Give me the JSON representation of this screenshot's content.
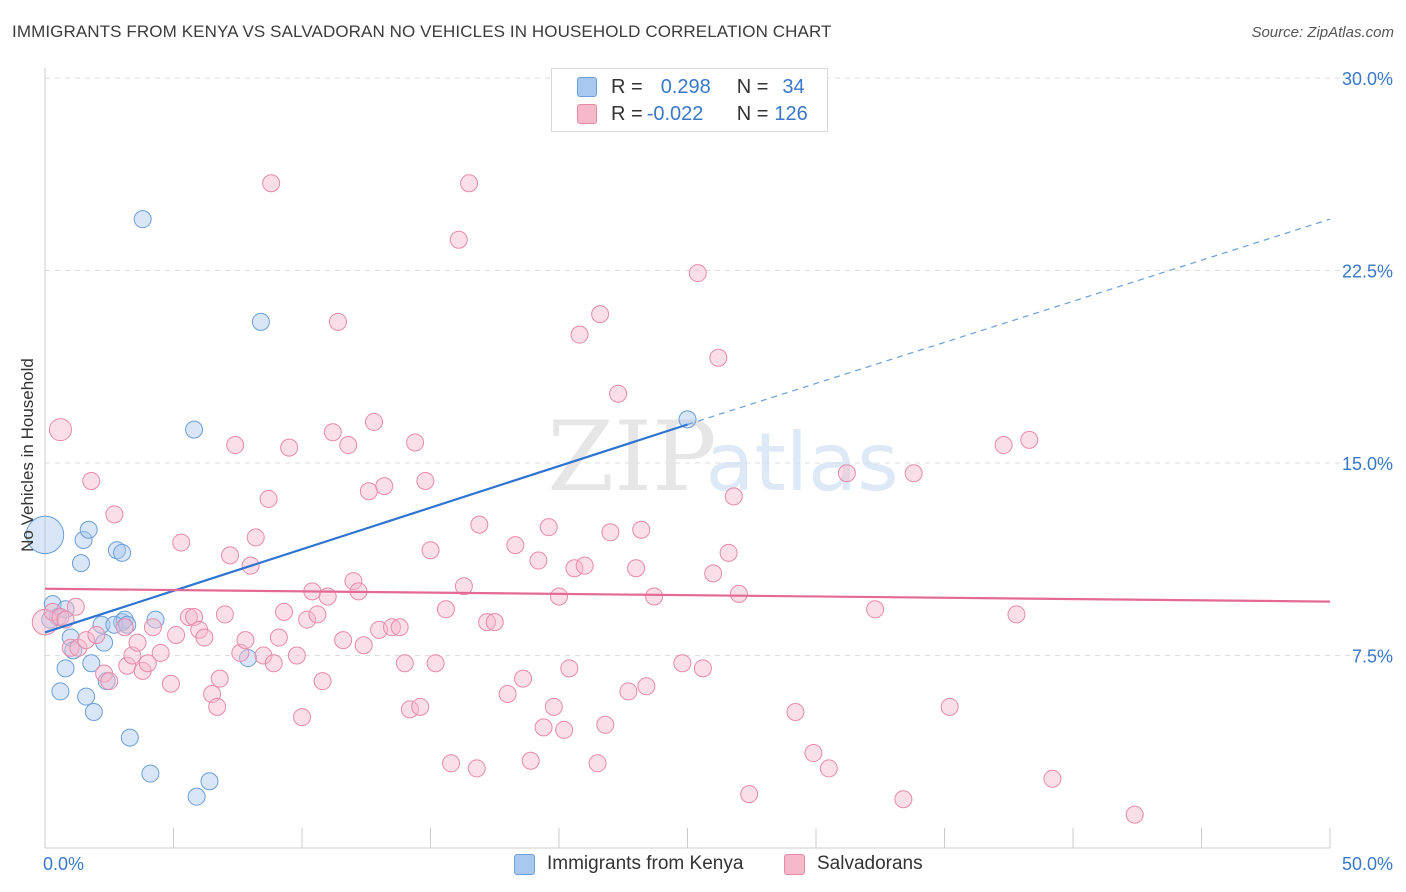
{
  "title": "IMMIGRANTS FROM KENYA VS SALVADORAN NO VEHICLES IN HOUSEHOLD CORRELATION CHART",
  "source": "Source: ZipAtlas.com",
  "watermark": {
    "zip": "ZIP",
    "atlas": "atlas"
  },
  "legend": {
    "rows": [
      {
        "r_label": "R =",
        "r_value": "0.298",
        "n_label": "N =",
        "n_value": "34",
        "color": "#a9c8ef",
        "edge": "#6a9fd8"
      },
      {
        "r_label": "R =",
        "r_value": "-0.022",
        "n_label": "N =",
        "n_value": "126",
        "color": "#f6b8cb",
        "edge": "#e88aa8"
      }
    ]
  },
  "bottom_legend": [
    {
      "label": "Immigrants from Kenya",
      "color": "#a9c8ef",
      "edge": "#6a9fd8"
    },
    {
      "label": "Salvadorans",
      "color": "#f6b8cb",
      "edge": "#e88aa8"
    }
  ],
  "chart_data": {
    "type": "scatter",
    "ylabel": "No Vehicles in Household",
    "xlim": [
      0,
      50
    ],
    "ylim": [
      0,
      30
    ],
    "x_tick_labels": [
      {
        "value": 0,
        "label": "0.0%"
      },
      {
        "value": 50,
        "label": "50.0%"
      }
    ],
    "y_tick_labels": [
      {
        "value": 7.5,
        "label": "7.5%"
      },
      {
        "value": 15,
        "label": "15.0%"
      },
      {
        "value": 22.5,
        "label": "22.5%"
      },
      {
        "value": 30,
        "label": "30.0%"
      }
    ],
    "grid": "horizontal dashed",
    "series": [
      {
        "name": "Immigrants from Kenya",
        "color": "#6a9fd8",
        "fill": "#a9c8ef",
        "trend": {
          "x": [
            0,
            25
          ],
          "y": [
            8.4,
            16.5
          ],
          "extended_to": [
            50,
            24.5
          ]
        },
        "points": [
          [
            0.0,
            12.2,
            2.2
          ],
          [
            0.3,
            9.5,
            1
          ],
          [
            0.5,
            9.0,
            1
          ],
          [
            0.8,
            9.3,
            1
          ],
          [
            0.6,
            6.1,
            1
          ],
          [
            0.8,
            7.0,
            1
          ],
          [
            1.0,
            8.2,
            1
          ],
          [
            1.1,
            7.7,
            1
          ],
          [
            1.4,
            11.1,
            1
          ],
          [
            1.5,
            12.0,
            1
          ],
          [
            1.6,
            5.9,
            1
          ],
          [
            1.7,
            12.4,
            1
          ],
          [
            1.8,
            7.2,
            1
          ],
          [
            1.9,
            5.3,
            1
          ],
          [
            2.3,
            8.0,
            1
          ],
          [
            2.2,
            8.7,
            1
          ],
          [
            2.4,
            6.5,
            1
          ],
          [
            2.8,
            11.6,
            1
          ],
          [
            3.0,
            11.5,
            1
          ],
          [
            3.0,
            8.8,
            1
          ],
          [
            3.1,
            8.9,
            1
          ],
          [
            3.3,
            4.3,
            1
          ],
          [
            3.8,
            24.5,
            1
          ],
          [
            4.1,
            2.9,
            1
          ],
          [
            4.3,
            8.9,
            1
          ],
          [
            5.8,
            16.3,
            1
          ],
          [
            5.9,
            2.0,
            1
          ],
          [
            6.4,
            2.6,
            1
          ],
          [
            7.9,
            7.4,
            1
          ],
          [
            8.4,
            20.5,
            1
          ],
          [
            25.0,
            16.7,
            1
          ],
          [
            0.2,
            8.9,
            1
          ],
          [
            2.7,
            8.7,
            1
          ],
          [
            3.2,
            8.7,
            1
          ]
        ]
      },
      {
        "name": "Salvadorans",
        "color": "#e88aa8",
        "fill": "#f6b8cb",
        "trend": {
          "x": [
            0,
            50
          ],
          "y": [
            10.1,
            9.6
          ]
        },
        "points": [
          [
            0.0,
            8.8,
            1.5
          ],
          [
            0.3,
            9.2,
            1
          ],
          [
            0.6,
            9.0,
            1
          ],
          [
            0.8,
            8.9,
            1
          ],
          [
            1.0,
            7.8,
            1
          ],
          [
            1.2,
            9.4,
            1
          ],
          [
            1.3,
            7.8,
            1
          ],
          [
            0.6,
            16.3,
            1.3
          ],
          [
            1.8,
            14.3,
            1
          ],
          [
            1.6,
            8.1,
            1
          ],
          [
            2.0,
            8.3,
            1
          ],
          [
            2.3,
            6.8,
            1
          ],
          [
            2.5,
            6.5,
            1
          ],
          [
            2.7,
            13.0,
            1
          ],
          [
            3.1,
            8.6,
            1
          ],
          [
            3.2,
            7.1,
            1
          ],
          [
            3.4,
            7.5,
            1
          ],
          [
            3.6,
            8.0,
            1
          ],
          [
            3.8,
            6.9,
            1
          ],
          [
            4.0,
            7.2,
            1
          ],
          [
            4.2,
            8.6,
            1
          ],
          [
            4.5,
            7.6,
            1
          ],
          [
            4.9,
            6.4,
            1
          ],
          [
            5.1,
            8.3,
            1
          ],
          [
            5.3,
            11.9,
            1
          ],
          [
            5.6,
            9.0,
            1
          ],
          [
            5.8,
            9.0,
            1
          ],
          [
            6.0,
            8.5,
            1
          ],
          [
            6.2,
            8.2,
            1
          ],
          [
            6.5,
            6.0,
            1
          ],
          [
            6.7,
            5.5,
            1
          ],
          [
            6.8,
            6.6,
            1
          ],
          [
            7.0,
            9.1,
            1
          ],
          [
            7.2,
            11.4,
            1
          ],
          [
            7.4,
            15.7,
            1
          ],
          [
            7.6,
            7.6,
            1
          ],
          [
            7.8,
            8.1,
            1
          ],
          [
            8.0,
            11.0,
            1
          ],
          [
            8.2,
            12.1,
            1
          ],
          [
            8.5,
            7.5,
            1
          ],
          [
            8.7,
            13.6,
            1
          ],
          [
            8.8,
            25.9,
            1
          ],
          [
            8.9,
            7.2,
            1
          ],
          [
            9.1,
            8.2,
            1
          ],
          [
            9.3,
            9.2,
            1
          ],
          [
            9.5,
            15.6,
            1
          ],
          [
            9.8,
            7.5,
            1
          ],
          [
            10.0,
            5.1,
            1
          ],
          [
            10.2,
            8.9,
            1
          ],
          [
            10.4,
            10.0,
            1
          ],
          [
            10.6,
            9.1,
            1
          ],
          [
            10.8,
            6.5,
            1
          ],
          [
            11.0,
            9.8,
            1
          ],
          [
            11.2,
            16.2,
            1
          ],
          [
            11.4,
            20.5,
            1
          ],
          [
            11.6,
            8.1,
            1
          ],
          [
            11.8,
            15.7,
            1
          ],
          [
            12.0,
            10.4,
            1
          ],
          [
            12.2,
            10.0,
            1
          ],
          [
            12.4,
            7.9,
            1
          ],
          [
            12.6,
            13.9,
            1
          ],
          [
            12.8,
            16.6,
            1
          ],
          [
            13.0,
            8.5,
            1
          ],
          [
            13.2,
            14.1,
            1
          ],
          [
            13.5,
            8.6,
            1
          ],
          [
            13.8,
            8.6,
            1
          ],
          [
            14.0,
            7.2,
            1
          ],
          [
            14.2,
            5.4,
            1
          ],
          [
            14.4,
            15.8,
            1
          ],
          [
            14.6,
            5.5,
            1
          ],
          [
            14.8,
            14.3,
            1
          ],
          [
            15.0,
            11.6,
            1
          ],
          [
            15.2,
            7.2,
            1
          ],
          [
            15.6,
            9.3,
            1
          ],
          [
            15.8,
            3.3,
            1
          ],
          [
            16.1,
            23.7,
            1
          ],
          [
            16.3,
            10.2,
            1
          ],
          [
            16.5,
            25.9,
            1
          ],
          [
            16.8,
            3.1,
            1
          ],
          [
            16.9,
            12.6,
            1
          ],
          [
            17.2,
            8.8,
            1
          ],
          [
            17.5,
            8.8,
            1
          ],
          [
            18.0,
            6.0,
            1
          ],
          [
            18.3,
            11.8,
            1
          ],
          [
            18.6,
            6.6,
            1
          ],
          [
            18.9,
            3.4,
            1
          ],
          [
            19.2,
            11.2,
            1
          ],
          [
            19.4,
            4.7,
            1
          ],
          [
            19.6,
            12.5,
            1
          ],
          [
            19.8,
            5.5,
            1
          ],
          [
            20.0,
            9.8,
            1
          ],
          [
            20.2,
            4.6,
            1
          ],
          [
            20.4,
            7.0,
            1
          ],
          [
            20.6,
            10.9,
            1
          ],
          [
            20.8,
            20.0,
            1
          ],
          [
            21.0,
            11.0,
            1
          ],
          [
            21.5,
            3.3,
            1
          ],
          [
            21.6,
            20.8,
            1
          ],
          [
            21.8,
            4.8,
            1
          ],
          [
            22.0,
            12.3,
            1
          ],
          [
            22.3,
            17.7,
            1
          ],
          [
            22.7,
            6.1,
            1
          ],
          [
            23.0,
            10.9,
            1
          ],
          [
            23.2,
            12.4,
            1
          ],
          [
            23.4,
            6.3,
            1
          ],
          [
            23.7,
            9.8,
            1
          ],
          [
            24.8,
            7.2,
            1
          ],
          [
            25.4,
            22.4,
            1
          ],
          [
            25.6,
            7.0,
            1
          ],
          [
            26.0,
            10.7,
            1
          ],
          [
            26.2,
            19.1,
            1
          ],
          [
            26.6,
            11.5,
            1
          ],
          [
            26.8,
            13.7,
            1
          ],
          [
            27.0,
            9.9,
            1
          ],
          [
            27.4,
            2.1,
            1
          ],
          [
            29.2,
            5.3,
            1
          ],
          [
            29.9,
            3.7,
            1
          ],
          [
            30.5,
            3.1,
            1
          ],
          [
            31.2,
            14.6,
            1
          ],
          [
            32.3,
            9.3,
            1
          ],
          [
            33.4,
            1.9,
            1
          ],
          [
            33.8,
            14.6,
            1
          ],
          [
            35.2,
            5.5,
            1
          ],
          [
            37.3,
            15.7,
            1
          ],
          [
            38.3,
            15.9,
            1
          ],
          [
            37.8,
            9.1,
            1
          ],
          [
            39.2,
            2.7,
            1
          ],
          [
            42.4,
            1.3,
            1
          ]
        ]
      }
    ]
  }
}
